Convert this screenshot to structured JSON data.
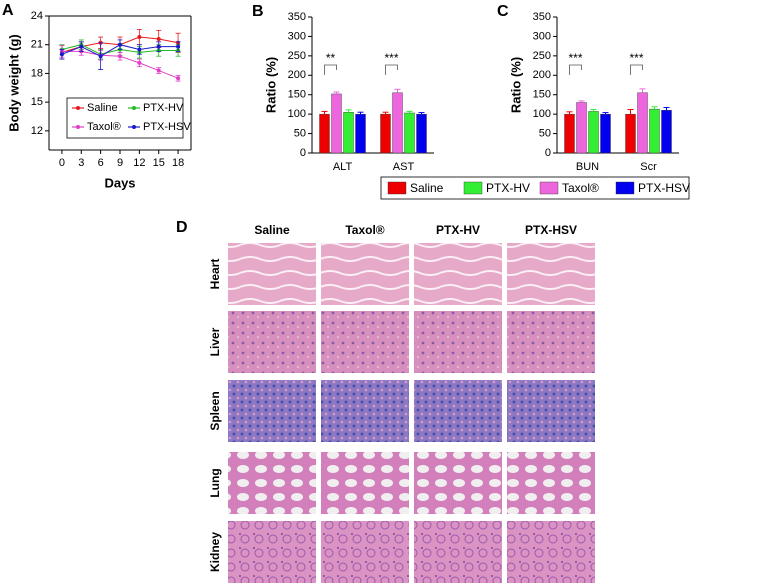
{
  "chart_data": [
    {
      "type": "line",
      "panel": "A",
      "ylabel": "Body weight (g)",
      "xlabel": "Days",
      "x": [
        0,
        3,
        6,
        9,
        12,
        15,
        18
      ],
      "xlim": [
        -2,
        20
      ],
      "xticks": [
        0,
        3,
        6,
        9,
        12,
        15,
        18
      ],
      "ylim": [
        10,
        24
      ],
      "yticks": [
        12,
        15,
        18,
        21,
        24
      ],
      "series": [
        {
          "name": "Saline",
          "color": "#e8191f",
          "values": [
            20.2,
            20.8,
            21.2,
            21.0,
            21.8,
            21.6,
            21.2
          ],
          "errors": [
            0.7,
            0.5,
            0.6,
            0.8,
            0.8,
            0.9,
            1.0
          ]
        },
        {
          "name": "PTX-HV",
          "color": "#22bb22",
          "values": [
            20.5,
            21.0,
            20.0,
            20.5,
            20.2,
            20.4,
            20.4
          ],
          "errors": [
            0.5,
            0.5,
            0.5,
            0.6,
            0.6,
            0.6,
            0.6
          ]
        },
        {
          "name": "Taxol®",
          "color": "#e040c8",
          "values": [
            20.3,
            20.3,
            19.9,
            19.8,
            19.1,
            18.3,
            17.5
          ],
          "errors": [
            0.6,
            0.4,
            0.5,
            0.4,
            0.4,
            0.3,
            0.3
          ]
        },
        {
          "name": "PTX-HSV",
          "color": "#1a1acc",
          "values": [
            20.0,
            20.8,
            19.8,
            21.0,
            20.5,
            20.8,
            20.8
          ],
          "errors": [
            0.5,
            0.5,
            1.4,
            0.5,
            0.5,
            0.5,
            0.5
          ]
        }
      ]
    },
    {
      "type": "bar",
      "panel": "B",
      "ylabel": "Ratio (%)",
      "categories": [
        "ALT",
        "AST"
      ],
      "ylim": [
        0,
        350
      ],
      "yticks": [
        0,
        50,
        100,
        150,
        200,
        250,
        300,
        350
      ],
      "annotations": [
        "**",
        "***"
      ],
      "series": [
        {
          "name": "Saline",
          "color": "#ee0000",
          "values": [
            100,
            100
          ],
          "errors": [
            7,
            5
          ]
        },
        {
          "name": "Taxol®",
          "color": "#ee66dd",
          "values": [
            152,
            155
          ],
          "errors": [
            5,
            9
          ]
        },
        {
          "name": "PTX-HV",
          "color": "#33ee33",
          "values": [
            105,
            103
          ],
          "errors": [
            6,
            4
          ]
        },
        {
          "name": "PTX-HSV",
          "color": "#0000ee",
          "values": [
            100,
            100
          ],
          "errors": [
            5,
            4
          ]
        }
      ]
    },
    {
      "type": "bar",
      "panel": "C",
      "ylabel": "Ratio (%)",
      "categories": [
        "BUN",
        "Scr"
      ],
      "ylim": [
        0,
        350
      ],
      "yticks": [
        0,
        50,
        100,
        150,
        200,
        250,
        300,
        350
      ],
      "annotations": [
        "***",
        "***"
      ],
      "series": [
        {
          "name": "Saline",
          "color": "#ee0000",
          "values": [
            100,
            100
          ],
          "errors": [
            6,
            12
          ]
        },
        {
          "name": "Taxol®",
          "color": "#ee66dd",
          "values": [
            130,
            155
          ],
          "errors": [
            4,
            10
          ]
        },
        {
          "name": "PTX-HV",
          "color": "#33ee33",
          "values": [
            107,
            113
          ],
          "errors": [
            5,
            6
          ]
        },
        {
          "name": "PTX-HSV",
          "color": "#0000ee",
          "values": [
            100,
            110
          ],
          "errors": [
            4,
            7
          ]
        }
      ]
    }
  ],
  "histology": {
    "panel": "D",
    "columns": [
      "Saline",
      "Taxol®",
      "PTX-HV",
      "PTX-HSV"
    ],
    "rows": [
      "Heart",
      "Liver",
      "Spleen",
      "Lung",
      "Kidney"
    ]
  }
}
